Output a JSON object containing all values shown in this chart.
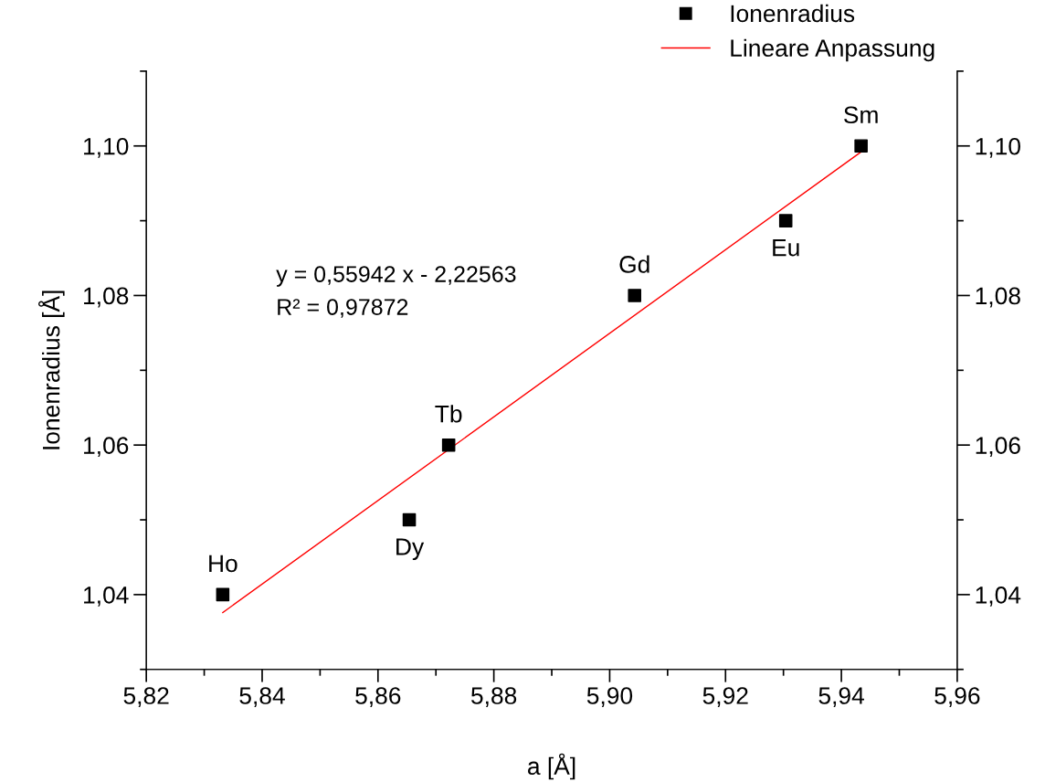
{
  "chart_data": {
    "type": "scatter",
    "xlabel": "a [Å]",
    "ylabel": "Ionenradius [Å]",
    "series": [
      {
        "name": "Ionenradius",
        "color": "#000000",
        "marker": "square",
        "x": [
          5.8332,
          5.8654,
          5.8722,
          5.9043,
          5.9304,
          5.9434
        ],
        "values": [
          1.04,
          1.05,
          1.06,
          1.08,
          1.09,
          1.1
        ]
      },
      {
        "name": "Lineare Anpassung",
        "type": "line",
        "color": "#ff0000",
        "marker": "none",
        "line_style": "solid",
        "x": [
          5.8332,
          5.9434
        ],
        "values": [
          1.0376,
          1.0992
        ]
      }
    ],
    "annotations": [
      {
        "text": "Ho",
        "x": 5.8332,
        "y": 1.04
      },
      {
        "text": "Dy",
        "x": 5.8654,
        "y": 1.05
      },
      {
        "text": "Tb",
        "x": 5.8722,
        "y": 1.06
      },
      {
        "text": "Gd",
        "x": 5.9043,
        "y": 1.08
      },
      {
        "text": "Eu",
        "x": 5.9304,
        "y": 1.09
      },
      {
        "text": "Sm",
        "x": 5.9434,
        "y": 1.1
      },
      "y = 0,55942 x - 2,22563\nR² = 0,97872"
    ],
    "xlim": [
      5.82,
      5.96
    ],
    "xticks": [
      {
        "value": 5.82,
        "label": "5,82"
      },
      {
        "value": 5.84,
        "label": "5,84"
      },
      {
        "value": 5.86,
        "label": "5,86"
      },
      {
        "value": 5.88,
        "label": "5,88"
      },
      {
        "value": 5.9,
        "label": "5,90"
      },
      {
        "value": 5.92,
        "label": "5,92"
      },
      {
        "value": 5.94,
        "label": "5,94"
      },
      {
        "value": 5.96,
        "label": "5,96"
      }
    ],
    "ylim": [
      1.03,
      1.11
    ],
    "yticks": [
      {
        "value": 1.04,
        "label": "1,04"
      },
      {
        "value": 1.06,
        "label": "1,06"
      },
      {
        "value": 1.08,
        "label": "1,08"
      },
      {
        "value": 1.1,
        "label": "1,10"
      }
    ],
    "y2lim": [
      1.03,
      1.11
    ],
    "y2ticks": [
      {
        "value": 1.04,
        "label": "1,04"
      },
      {
        "value": 1.06,
        "label": "1,06"
      },
      {
        "value": 1.08,
        "label": "1,08"
      },
      {
        "value": 1.1,
        "label": "1,10"
      }
    ],
    "grid": false,
    "legend": "top right"
  }
}
